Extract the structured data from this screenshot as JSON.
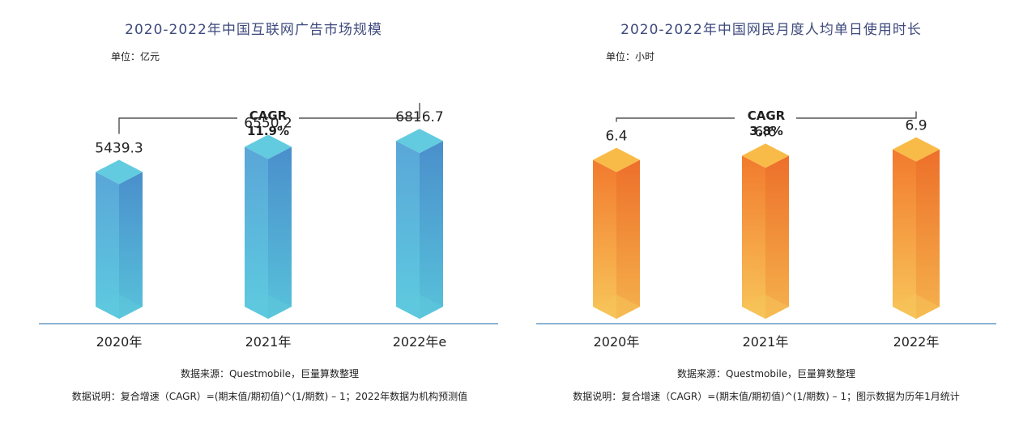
{
  "chart_data": [
    {
      "type": "bar",
      "title": "2020-2022年中国互联网广告市场规模",
      "unit_label": "单位：亿元",
      "categories": [
        "2020年",
        "2021年",
        "2022年e"
      ],
      "values": [
        5439.3,
        6550.2,
        6816.7
      ],
      "value_labels": [
        "5439.3",
        "6550.2",
        "6816.7"
      ],
      "ylim": [
        0,
        7000
      ],
      "cagr_label": "CAGR",
      "cagr_value": "11.9%",
      "source": "数据来源：Questmobile，巨量算数整理",
      "note": "数据说明：复合增速（CAGR）=(期末值/期初值)^(1/期数) – 1；2022年数据为机构预测值",
      "colors": {
        "top": "#62cbe0",
        "front": "#57b8dc",
        "side": "#4e9bcf",
        "bottom": "#5ec9dc"
      }
    },
    {
      "type": "bar",
      "title": "2020-2022年中国网民月度人均单日使用时长",
      "unit_label": "单位：小时",
      "categories": [
        "2020年",
        "2021年",
        "2022年"
      ],
      "values": [
        6.4,
        6.6,
        6.9
      ],
      "value_labels": [
        "6.4",
        "6.6",
        "6.9"
      ],
      "ylim": [
        0,
        7.5
      ],
      "cagr_label": "CAGR",
      "cagr_value": "3.8%",
      "source": "数据来源：Questmobile，巨量算数整理",
      "note": "数据说明：复合增速（CAGR）=(期末值/期初值)^(1/期数) – 1；图示数据为历年1月统计",
      "colors": {
        "top": "#f9bb48",
        "front": "#f4913a",
        "side": "#ef7a33",
        "bottom": "#f6c35a"
      }
    }
  ]
}
